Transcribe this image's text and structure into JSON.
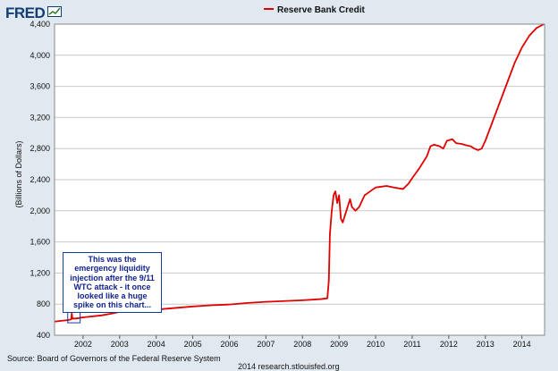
{
  "logo": {
    "text": "FRED"
  },
  "icons": {
    "logo_mark": "chart-line-icon"
  },
  "annotation": {
    "text": "This was the emergency liquidity injection after the 9/11 WTC attack - it once looked like a huge spike on this chart..."
  },
  "footer": {
    "source": "Source: Board of Governors of the Federal Reserve System",
    "credit": "2014 research.stlouisfed.org"
  },
  "colors": {
    "series": "#e00000",
    "plot_bg": "#ffffff",
    "page_bg": "#e1e9f0",
    "grid": "#c8c8c8",
    "annotation_border": "#123ea0",
    "annotation_text": "#11228f",
    "logo": "#123e73"
  },
  "chart_data": {
    "type": "line",
    "title": "",
    "xlabel": "",
    "ylabel": "(Billions of Dollars)",
    "ylim": [
      400,
      4400
    ],
    "yticks": [
      400,
      800,
      1200,
      1600,
      2000,
      2400,
      2800,
      3200,
      3600,
      4000,
      4400
    ],
    "ytick_labels": [
      "400",
      "800",
      "1,200",
      "1,600",
      "2,000",
      "2,400",
      "2,800",
      "3,200",
      "3,600",
      "4,000",
      "4,400"
    ],
    "xlim": [
      2001.22,
      2014.62
    ],
    "xticks": [
      2002,
      2003,
      2004,
      2005,
      2006,
      2007,
      2008,
      2009,
      2010,
      2011,
      2012,
      2013,
      2014
    ],
    "xtick_labels": [
      "2002",
      "2003",
      "2004",
      "2005",
      "2006",
      "2007",
      "2008",
      "2009",
      "2010",
      "2011",
      "2012",
      "2013",
      "2014"
    ],
    "grid": true,
    "legend": "top-center",
    "series": [
      {
        "name": "Reserve Bank Credit",
        "color": "#e00000",
        "points": [
          [
            2001.22,
            575
          ],
          [
            2001.4,
            585
          ],
          [
            2001.6,
            595
          ],
          [
            2001.68,
            605
          ],
          [
            2001.69,
            680
          ],
          [
            2001.71,
            615
          ],
          [
            2001.8,
            615
          ],
          [
            2002.0,
            630
          ],
          [
            2002.5,
            655
          ],
          [
            2002.8,
            680
          ],
          [
            2003.0,
            700
          ],
          [
            2003.5,
            715
          ],
          [
            2004.0,
            730
          ],
          [
            2004.5,
            750
          ],
          [
            2005.0,
            770
          ],
          [
            2005.5,
            785
          ],
          [
            2006.0,
            795
          ],
          [
            2006.5,
            815
          ],
          [
            2007.0,
            830
          ],
          [
            2007.5,
            840
          ],
          [
            2008.0,
            850
          ],
          [
            2008.5,
            865
          ],
          [
            2008.68,
            875
          ],
          [
            2008.72,
            1100
          ],
          [
            2008.75,
            1700
          ],
          [
            2008.8,
            2000
          ],
          [
            2008.85,
            2200
          ],
          [
            2008.9,
            2250
          ],
          [
            2008.95,
            2100
          ],
          [
            2009.0,
            2200
          ],
          [
            2009.05,
            1900
          ],
          [
            2009.1,
            1850
          ],
          [
            2009.2,
            2000
          ],
          [
            2009.3,
            2150
          ],
          [
            2009.35,
            2050
          ],
          [
            2009.45,
            2000
          ],
          [
            2009.55,
            2050
          ],
          [
            2009.7,
            2200
          ],
          [
            2009.85,
            2250
          ],
          [
            2010.0,
            2300
          ],
          [
            2010.3,
            2320
          ],
          [
            2010.5,
            2300
          ],
          [
            2010.75,
            2280
          ],
          [
            2010.9,
            2350
          ],
          [
            2011.0,
            2420
          ],
          [
            2011.2,
            2550
          ],
          [
            2011.4,
            2700
          ],
          [
            2011.5,
            2830
          ],
          [
            2011.6,
            2850
          ],
          [
            2011.75,
            2830
          ],
          [
            2011.85,
            2800
          ],
          [
            2011.95,
            2900
          ],
          [
            2012.1,
            2920
          ],
          [
            2012.2,
            2870
          ],
          [
            2012.35,
            2860
          ],
          [
            2012.5,
            2840
          ],
          [
            2012.6,
            2830
          ],
          [
            2012.7,
            2800
          ],
          [
            2012.8,
            2780
          ],
          [
            2012.9,
            2800
          ],
          [
            2013.0,
            2900
          ],
          [
            2013.2,
            3150
          ],
          [
            2013.4,
            3400
          ],
          [
            2013.6,
            3650
          ],
          [
            2013.8,
            3900
          ],
          [
            2014.0,
            4100
          ],
          [
            2014.2,
            4250
          ],
          [
            2014.4,
            4350
          ],
          [
            2014.6,
            4400
          ]
        ]
      }
    ]
  }
}
